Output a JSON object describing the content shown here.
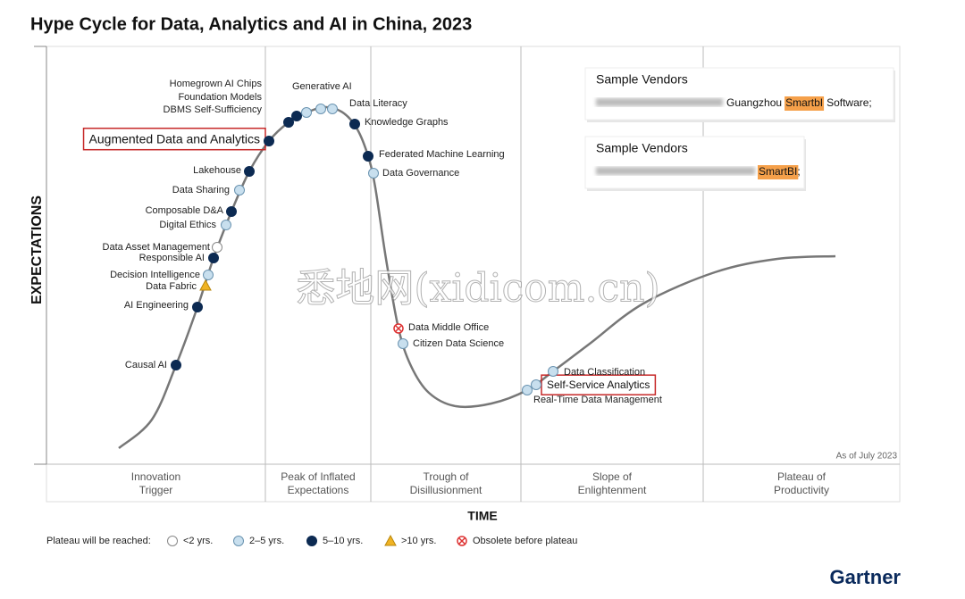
{
  "title": "Hype Cycle for Data, Analytics and AI in China, 2023",
  "y_axis_label": "EXPECTATIONS",
  "x_axis_label": "TIME",
  "phases": [
    [
      "Innovation",
      "Trigger"
    ],
    [
      "Peak of Inflated",
      "Expectations"
    ],
    [
      "Trough of",
      "Disillusionment"
    ],
    [
      "Slope of",
      "Enlightenment"
    ],
    [
      "Plateau of",
      "Productivity"
    ]
  ],
  "as_of": "As of July 2023",
  "technologies": [
    {
      "label": "Causal AI",
      "plateau": 2
    },
    {
      "label": "AI Engineering",
      "plateau": 2
    },
    {
      "label": "Data Fabric",
      "plateau": 3
    },
    {
      "label": "Decision Intelligence",
      "plateau": 1
    },
    {
      "label": "Responsible AI",
      "plateau": 2
    },
    {
      "label": "Data Asset Management",
      "plateau": 0
    },
    {
      "label": "Digital Ethics",
      "plateau": 1
    },
    {
      "label": "Composable D&A",
      "plateau": 2
    },
    {
      "label": "Data Sharing",
      "plateau": 1
    },
    {
      "label": "Lakehouse",
      "plateau": 2
    },
    {
      "label": "Augmented Data and Analytics",
      "plateau": 2,
      "highlighted": true
    },
    {
      "label": "DBMS Self-Sufficiency",
      "plateau": 2
    },
    {
      "label": "Foundation Models",
      "plateau": 2
    },
    {
      "label": "Homegrown AI Chips",
      "plateau": 1
    },
    {
      "label": "Generative AI",
      "plateau": 1
    },
    {
      "label": "Data Literacy",
      "plateau": 1
    },
    {
      "label": "Knowledge Graphs",
      "plateau": 2
    },
    {
      "label": "Federated Machine Learning",
      "plateau": 2
    },
    {
      "label": "Data Governance",
      "plateau": 1
    },
    {
      "label": "Data Middle Office",
      "plateau": 4
    },
    {
      "label": "Citizen Data Science",
      "plateau": 1
    },
    {
      "label": "Real-Time Data Management",
      "plateau": 1
    },
    {
      "label": "Self-Service Analytics",
      "plateau": 1,
      "highlighted": true
    },
    {
      "label": "Data Classification",
      "plateau": 1
    }
  ],
  "vendor_boxes": [
    {
      "title": "Sample Vendors",
      "text": [
        "Guangzhou",
        "SmartbI",
        "Software;"
      ]
    },
    {
      "title": "Sample Vendors",
      "text": [
        "SmartBI",
        ";"
      ]
    }
  ],
  "watermark": "悉地网(xidicom.cn)",
  "legend": {
    "title": "Plateau will be reached:",
    "items": [
      "<2 yrs.",
      "2–5 yrs.",
      "5–10 yrs.",
      ">10 yrs.",
      "Obsolete before plateau"
    ]
  },
  "brand": "Gartner"
}
